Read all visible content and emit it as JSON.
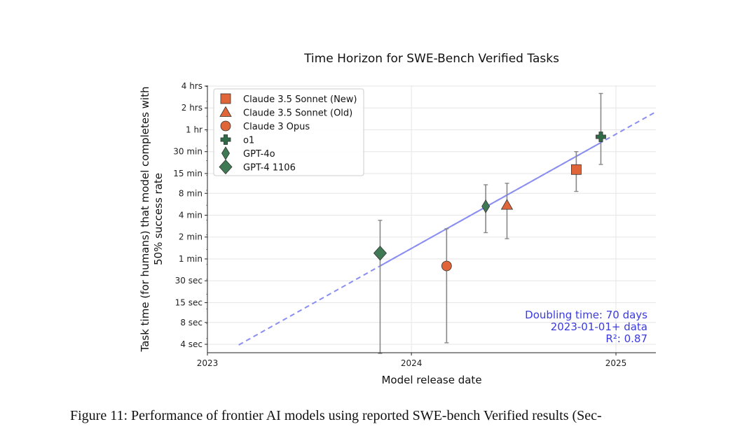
{
  "caption": "Figure 11: Performance of frontier AI models using reported SWE-bench Verified results (Sec-",
  "chart_data": {
    "type": "scatter",
    "title": "Time Horizon for SWE-Bench Verified Tasks",
    "xlabel": "Model release date",
    "ylabel_line1": "Task time (for humans) that model completes with",
    "ylabel_line2": "50% success rate",
    "y_scale": "log",
    "x_ticks": [
      "2023",
      "2024",
      "2025"
    ],
    "y_ticks": [
      {
        "label": "4 sec",
        "minutes": 0.0667
      },
      {
        "label": "8 sec",
        "minutes": 0.1333
      },
      {
        "label": "15 sec",
        "minutes": 0.25
      },
      {
        "label": "30 sec",
        "minutes": 0.5
      },
      {
        "label": "1 min",
        "minutes": 1
      },
      {
        "label": "2 min",
        "minutes": 2
      },
      {
        "label": "4 min",
        "minutes": 4
      },
      {
        "label": "8 min",
        "minutes": 8
      },
      {
        "label": "15 min",
        "minutes": 15
      },
      {
        "label": "30 min",
        "minutes": 30
      },
      {
        "label": "1 hr",
        "minutes": 60
      },
      {
        "label": "2 hrs",
        "minutes": 120
      },
      {
        "label": "4 hrs",
        "minutes": 240
      }
    ],
    "xlim": [
      "2023-01-01",
      "2025-03-15"
    ],
    "ylim_minutes": [
      0.05,
      240
    ],
    "series": [
      {
        "name": "Claude 3.5 Sonnet (New)",
        "marker": "square",
        "color": "#e0663a",
        "date": "2024-10-22",
        "minutes": 17,
        "ci_minutes": [
          8.5,
          30
        ]
      },
      {
        "name": "Claude 3.5 Sonnet (Old)",
        "marker": "triangle",
        "color": "#e0663a",
        "date": "2024-06-20",
        "minutes": 5.5,
        "ci_minutes": [
          1.9,
          11
        ]
      },
      {
        "name": "Claude 3 Opus",
        "marker": "circle",
        "color": "#e0663a",
        "date": "2024-03-04",
        "minutes": 0.8,
        "ci_minutes": [
          0.07,
          2.6
        ]
      },
      {
        "name": "o1",
        "marker": "plus",
        "color": "#2f6b47",
        "date": "2024-12-05",
        "minutes": 48,
        "ci_minutes": [
          20,
          190
        ]
      },
      {
        "name": "GPT-4o",
        "marker": "diamond",
        "color": "#3f7a55",
        "date": "2024-05-13",
        "minutes": 5.3,
        "ci_minutes": [
          2.3,
          10.5
        ]
      },
      {
        "name": "GPT-4 1106",
        "marker": "diamond_large",
        "color": "#3f7a55",
        "date": "2023-11-06",
        "minutes": 1.2,
        "ci_minutes": [
          0.05,
          3.4
        ]
      }
    ],
    "trendline": {
      "color": "#8a8ef0",
      "solid_from": "2023-11-06",
      "solid_to": "2024-12-05",
      "dashed_from": "2023-02-26",
      "dashed_to": "2025-03-15",
      "doubling_days": 70,
      "anchor_date": "2024-12-05",
      "anchor_minutes": 40
    },
    "annotation": {
      "lines": [
        "Doubling time: 70 days",
        "2023-01-01+ data",
        "R²: 0.87"
      ],
      "color": "#3a3ae0"
    },
    "grid": true,
    "legend_position": "top-left"
  }
}
